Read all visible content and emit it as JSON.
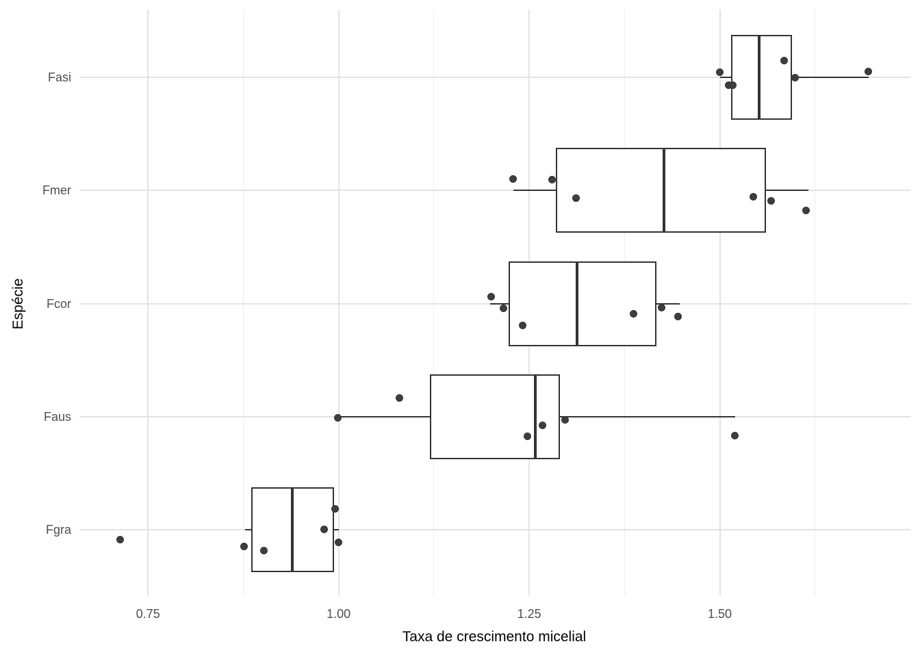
{
  "colors": {
    "background": "#ffffff",
    "grid_major": "#e3e3e3",
    "grid_minor": "#ededed",
    "box_stroke": "#333333",
    "box_fill": "#ffffff",
    "point_fill": "#3e3e3e",
    "tick_label": "#4d4d4d",
    "axis_title": "#000000"
  },
  "chart_data": {
    "type": "boxplot",
    "orientation": "horizontal",
    "title": "",
    "xlabel": "Taxa de crescimento micelial",
    "ylabel": "Espécie",
    "xlim": [
      0.66,
      1.75
    ],
    "x_major_ticks": [
      0.75,
      1.0,
      1.25,
      1.5
    ],
    "x_tick_labels": [
      "0.75",
      "1.00",
      "1.25",
      "1.50"
    ],
    "x_minor_ticks": [
      0.875,
      1.125,
      1.375,
      1.625
    ],
    "grid": "on",
    "legend": "none",
    "categories_top_to_bottom": [
      "Fasi",
      "Fmer",
      "Fcor",
      "Faus",
      "Fgra"
    ],
    "series": [
      {
        "species": "Fasi",
        "box": {
          "whisker_low": 1.5,
          "q1": 1.515,
          "median": 1.552,
          "q3": 1.595,
          "whisker_high": 1.695
        },
        "points": [
          {
            "x": 1.5,
            "dy": -8
          },
          {
            "x": 1.512,
            "dy": 11
          },
          {
            "x": 1.517,
            "dy": 11
          },
          {
            "x": 1.584,
            "dy": -25
          },
          {
            "x": 1.599,
            "dy": 0
          },
          {
            "x": 1.695,
            "dy": -9
          }
        ]
      },
      {
        "species": "Fmer",
        "box": {
          "whisker_low": 1.229,
          "q1": 1.285,
          "median": 1.427,
          "q3": 1.561,
          "whisker_high": 1.616
        },
        "points": [
          {
            "x": 1.229,
            "dy": -17
          },
          {
            "x": 1.28,
            "dy": -16
          },
          {
            "x": 1.311,
            "dy": 11
          },
          {
            "x": 1.544,
            "dy": 9
          },
          {
            "x": 1.567,
            "dy": 15
          },
          {
            "x": 1.613,
            "dy": 29
          }
        ]
      },
      {
        "species": "Fcor",
        "box": {
          "whisker_low": 1.199,
          "q1": 1.223,
          "median": 1.313,
          "q3": 1.417,
          "whisker_high": 1.447
        },
        "points": [
          {
            "x": 1.2,
            "dy": -10
          },
          {
            "x": 1.216,
            "dy": 7
          },
          {
            "x": 1.241,
            "dy": 32
          },
          {
            "x": 1.387,
            "dy": 15
          },
          {
            "x": 1.424,
            "dy": 6
          },
          {
            "x": 1.445,
            "dy": 19
          }
        ]
      },
      {
        "species": "Faus",
        "box": {
          "whisker_low": 0.999,
          "q1": 1.12,
          "median": 1.258,
          "q3": 1.29,
          "whisker_high": 1.52
        },
        "points": [
          {
            "x": 0.999,
            "dy": 1
          },
          {
            "x": 1.08,
            "dy": -28
          },
          {
            "x": 1.248,
            "dy": 28
          },
          {
            "x": 1.267,
            "dy": 12
          },
          {
            "x": 1.297,
            "dy": 4
          },
          {
            "x": 1.52,
            "dy": 27
          }
        ]
      },
      {
        "species": "Fgra",
        "box": {
          "whisker_low": 0.877,
          "q1": 0.885,
          "median": 0.939,
          "q3": 0.994,
          "whisker_high": 1.0
        },
        "points": [
          {
            "x": 0.713,
            "dy": 14
          },
          {
            "x": 0.876,
            "dy": 24
          },
          {
            "x": 0.902,
            "dy": 30
          },
          {
            "x": 0.981,
            "dy": -1
          },
          {
            "x": 0.995,
            "dy": -31
          },
          {
            "x": 1.0,
            "dy": 18
          }
        ]
      }
    ]
  }
}
